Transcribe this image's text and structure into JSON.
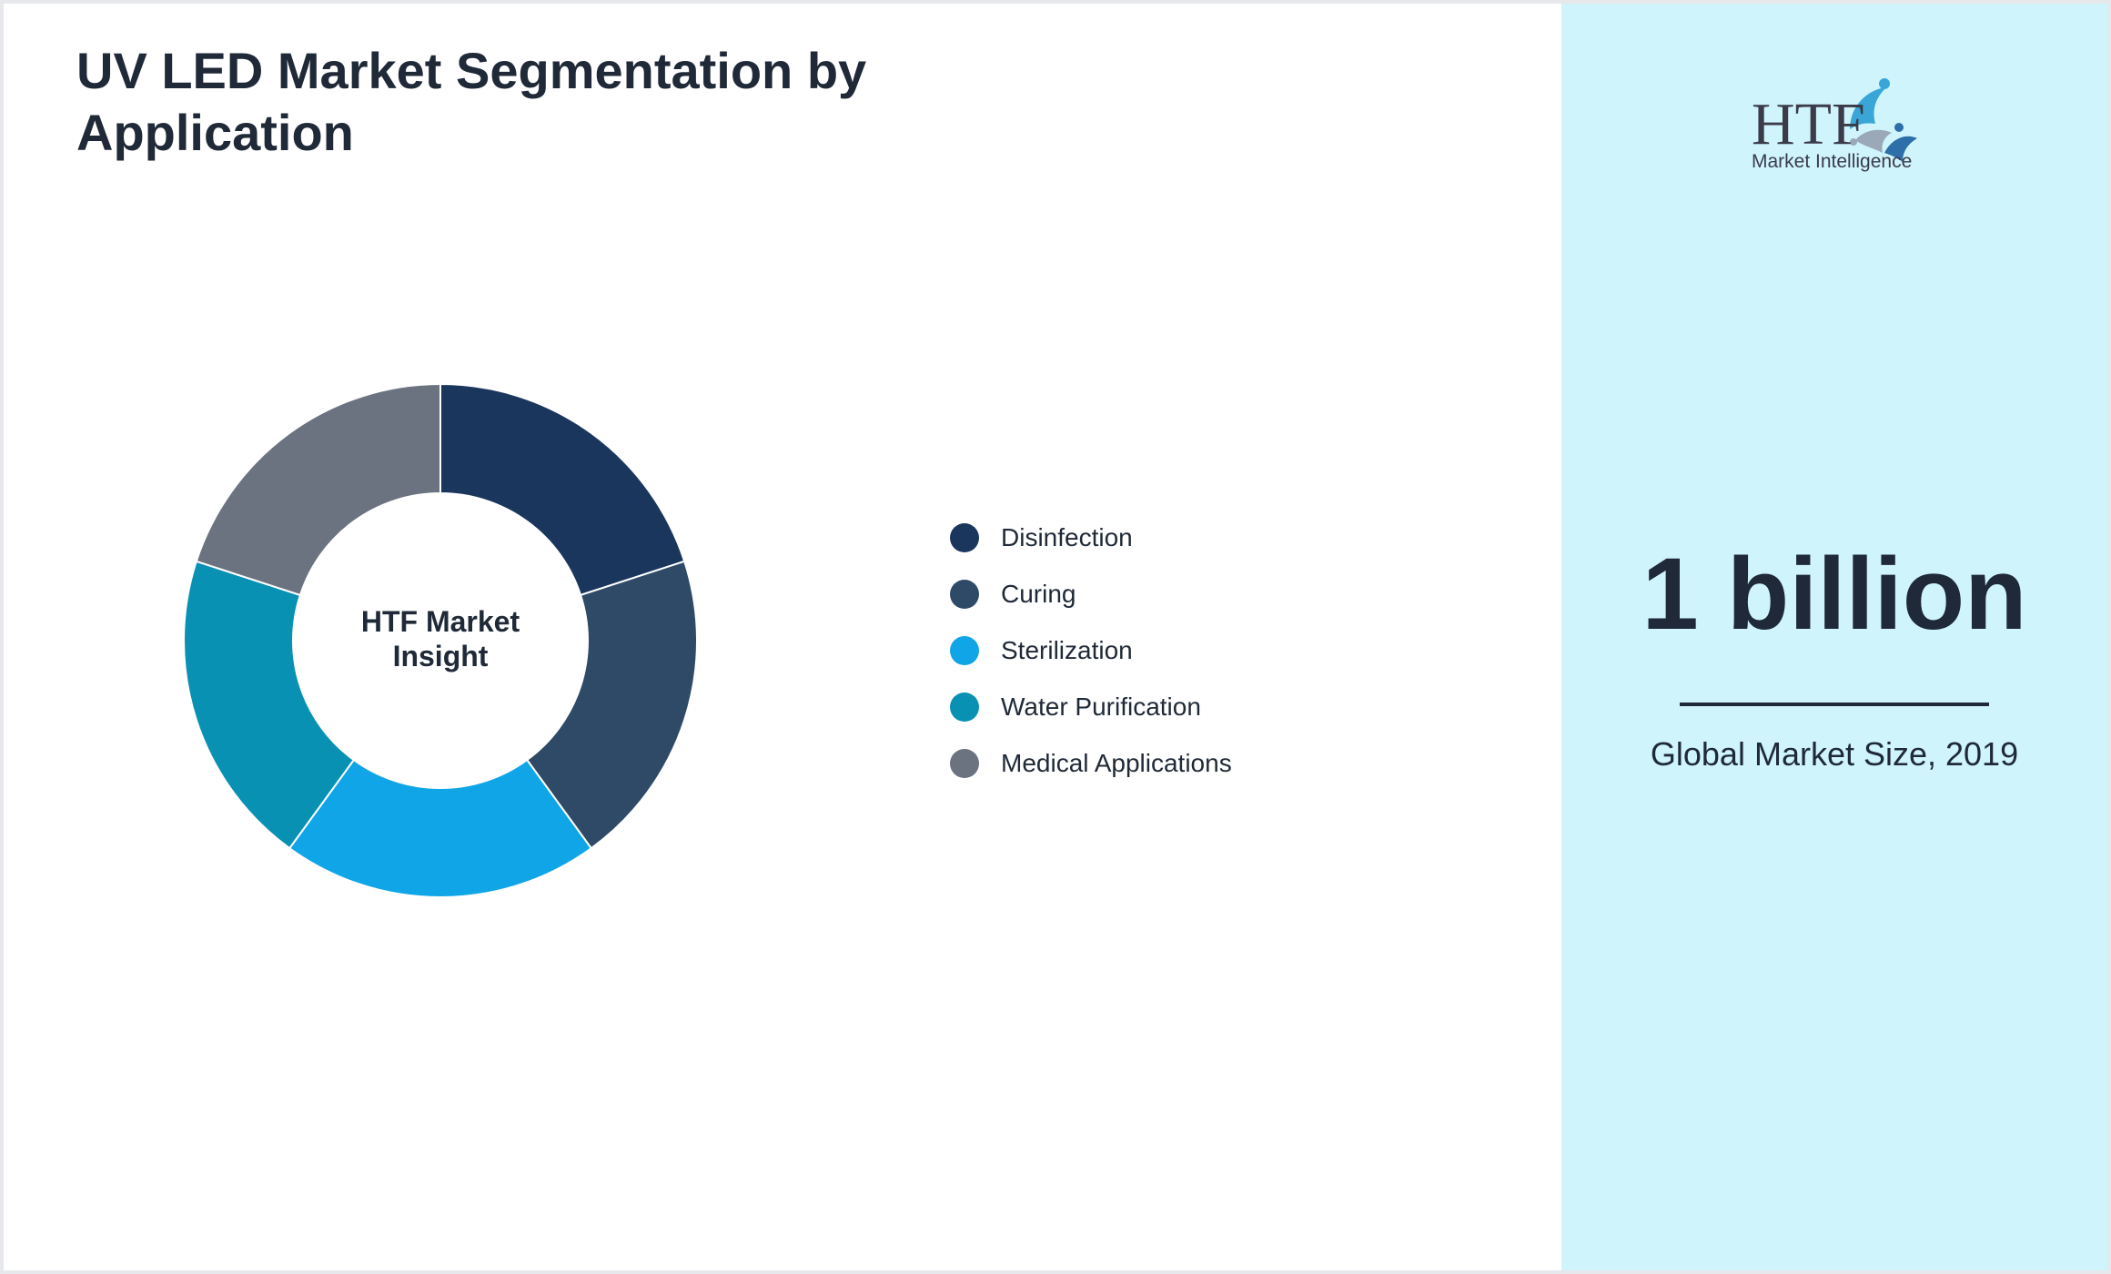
{
  "header": {
    "title": "UV LED Market Segmentation by Application"
  },
  "chart_data": {
    "type": "pie",
    "title": "UV LED Market Segmentation by Application",
    "center_label": "HTF Market Insight",
    "categories": [
      "Disinfection",
      "Curing",
      "Sterilization",
      "Water Purification",
      "Medical Applications"
    ],
    "values": [
      20,
      20,
      20,
      20,
      20
    ],
    "colors": [
      "#1b365d",
      "#2e4a67",
      "#10a5e6",
      "#0891b2",
      "#6b7280"
    ],
    "legend_position": "right",
    "donut": true
  },
  "sidebar": {
    "logo": {
      "letters": "HTF",
      "tagline": "Market Intelligence",
      "icon": "htf-swirl-logo"
    },
    "stat_value": "1 billion",
    "stat_caption": "Global Market Size, 2019"
  },
  "colors": {
    "panel_bg": "#cff4fc",
    "text": "#1f2937"
  }
}
